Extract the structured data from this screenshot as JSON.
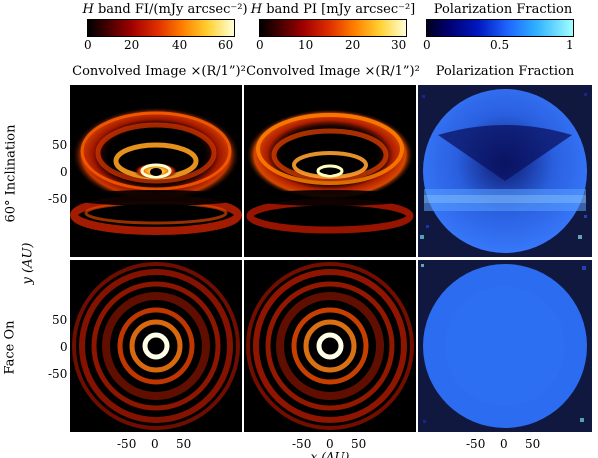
{
  "colorbars": [
    {
      "label": "H band FI/(mJy arcsec⁻²)",
      "ticks": [
        "0",
        "20",
        "40",
        "60"
      ],
      "tick_values": [
        0,
        20,
        40,
        60
      ],
      "range": [
        0,
        60
      ],
      "colormap": "hot"
    },
    {
      "label": "H band PI [mJy arcsec⁻²]",
      "ticks": [
        "0",
        "10",
        "20",
        "30"
      ],
      "tick_values": [
        0,
        10,
        20,
        30
      ],
      "range": [
        0,
        30
      ],
      "colormap": "hot"
    },
    {
      "label": "Polarization Fraction",
      "ticks": [
        "0",
        "0.5",
        "1"
      ],
      "tick_values": [
        0,
        0.5,
        1
      ],
      "range": [
        0,
        1
      ],
      "colormap": "blue-cyan"
    }
  ],
  "column_titles": [
    "Convolved Image ×(R/1”)²",
    "Convolved Image ×(R/1”)²",
    "Polarization Fraction"
  ],
  "row_labels": [
    "60° Inclination",
    "Face On"
  ],
  "y_axis_label": "y (AU)",
  "x_axis_label": "x (AU)",
  "y_ticks": [
    "50",
    "0",
    "-50"
  ],
  "x_ticks": [
    "-50",
    "0",
    "50"
  ],
  "colors": {
    "hot_dark": "#000000",
    "hot_red": "#c81400",
    "hot_orange": "#ff7800",
    "hot_yellow": "#ffff60",
    "pol_dark": "#00003a",
    "pol_blue": "#1e64ff",
    "pol_cyan": "#80ffff"
  }
}
